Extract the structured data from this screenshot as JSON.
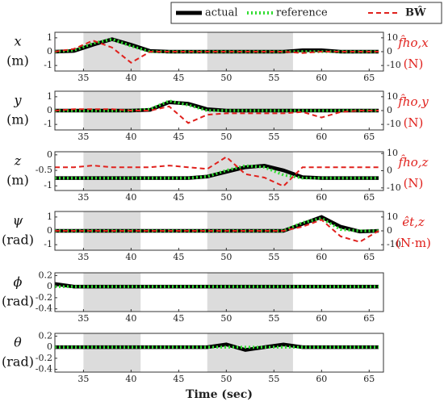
{
  "chart_data": [
    {
      "type": "line",
      "y_label": "x",
      "y_unit": "(m)",
      "y2_label": "f̂ho,x",
      "y2_unit": "(N)",
      "x": [
        32,
        34,
        36,
        38,
        40,
        42,
        44,
        46,
        48,
        50,
        52,
        54,
        56,
        58,
        60,
        62,
        64,
        66
      ],
      "xlim": [
        32,
        66.5
      ],
      "xticks": [
        35,
        40,
        45,
        50,
        55,
        60,
        65
      ],
      "ylim": [
        -1.4,
        1.4
      ],
      "yticks": [
        -1,
        0,
        1
      ],
      "y2lim": [
        -14,
        14
      ],
      "y2ticks": [
        -10,
        0,
        10
      ],
      "shaded": [
        [
          35,
          41
        ],
        [
          48,
          57
        ]
      ],
      "series": [
        {
          "name": "actual",
          "color": "#000000",
          "values": [
            0,
            0.05,
            0.5,
            0.9,
            0.5,
            0.05,
            0,
            0,
            0,
            0,
            0,
            0,
            0,
            0.1,
            0.1,
            0,
            0,
            0
          ]
        },
        {
          "name": "reference",
          "color": "#33dd33",
          "values": [
            0,
            0.1,
            0.6,
            0.9,
            0.4,
            0,
            0,
            0,
            0,
            0,
            0,
            0,
            0,
            0,
            0,
            0,
            0,
            0
          ]
        },
        {
          "name": "BŴ",
          "color": "#e0211d",
          "axis": "y2",
          "values": [
            0,
            2,
            8,
            3,
            -8,
            0,
            0,
            0,
            0,
            0,
            0,
            0,
            0,
            -1,
            0,
            0,
            0,
            0
          ]
        }
      ]
    },
    {
      "type": "line",
      "y_label": "y",
      "y_unit": "(m)",
      "y2_label": "f̂ho,y",
      "y2_unit": "(N)",
      "x": [
        32,
        34,
        36,
        38,
        40,
        42,
        44,
        46,
        48,
        50,
        52,
        54,
        56,
        58,
        60,
        62,
        64,
        66
      ],
      "xlim": [
        32,
        66.5
      ],
      "xticks": [
        35,
        40,
        45,
        50,
        55,
        60,
        65
      ],
      "ylim": [
        -1.4,
        1.4
      ],
      "yticks": [
        -1,
        0,
        1
      ],
      "y2lim": [
        -14,
        14
      ],
      "y2ticks": [
        -10,
        0,
        10
      ],
      "shaded": [
        [
          35,
          41
        ],
        [
          48,
          57
        ]
      ],
      "series": [
        {
          "name": "actual",
          "color": "#000000",
          "values": [
            0,
            0,
            0,
            0,
            0,
            0.05,
            0.6,
            0.5,
            0.1,
            0,
            0,
            0,
            0,
            0,
            0,
            0,
            0,
            0
          ]
        },
        {
          "name": "reference",
          "color": "#33dd33",
          "values": [
            0,
            0,
            0,
            0,
            0,
            0.1,
            0.7,
            0.4,
            0,
            0,
            0,
            0,
            0,
            0,
            0,
            0,
            0,
            0
          ]
        },
        {
          "name": "BŴ",
          "color": "#e0211d",
          "axis": "y2",
          "values": [
            0,
            1,
            1,
            1,
            0,
            0,
            3,
            -9,
            -3,
            -2,
            -2,
            -2,
            -2,
            -1,
            -5,
            -1,
            0,
            0
          ]
        }
      ]
    },
    {
      "type": "line",
      "y_label": "z",
      "y_unit": "(m)",
      "y2_label": "f̂ho,z",
      "y2_unit": "(N)",
      "x": [
        32,
        34,
        36,
        38,
        40,
        42,
        44,
        46,
        48,
        50,
        52,
        54,
        56,
        58,
        60,
        62,
        64,
        66
      ],
      "xlim": [
        32,
        66.5
      ],
      "xticks": [
        35,
        40,
        45,
        50,
        55,
        60,
        65
      ],
      "ylim": [
        -1.15,
        0.1
      ],
      "yticks": [
        -1,
        -0.5,
        0
      ],
      "y2lim": [
        -11.5,
        11
      ],
      "y2ticks": [
        -10,
        0,
        10
      ],
      "shaded": [
        [
          35,
          41
        ],
        [
          48,
          57
        ]
      ],
      "series": [
        {
          "name": "actual",
          "color": "#000000",
          "values": [
            -0.75,
            -0.75,
            -0.75,
            -0.75,
            -0.75,
            -0.75,
            -0.75,
            -0.75,
            -0.7,
            -0.55,
            -0.4,
            -0.35,
            -0.5,
            -0.72,
            -0.75,
            -0.75,
            -0.75,
            -0.75
          ]
        },
        {
          "name": "reference",
          "color": "#33dd33",
          "values": [
            -0.75,
            -0.75,
            -0.75,
            -0.75,
            -0.75,
            -0.75,
            -0.75,
            -0.75,
            -0.7,
            -0.5,
            -0.35,
            -0.4,
            -0.65,
            -0.75,
            -0.75,
            -0.75,
            -0.75,
            -0.75
          ]
        },
        {
          "name": "BŴ",
          "color": "#e0211d",
          "axis": "y2",
          "values": [
            2,
            2,
            3,
            2,
            2,
            2,
            3,
            2,
            1,
            8,
            -2,
            -4,
            -9,
            2,
            2,
            2,
            2,
            2
          ]
        }
      ]
    },
    {
      "type": "line",
      "y_label": "ψ",
      "y_unit": "(rad)",
      "y2_label": "êt,z",
      "y2_unit": "(N·m)",
      "x": [
        32,
        34,
        36,
        38,
        40,
        42,
        44,
        46,
        48,
        50,
        52,
        54,
        56,
        58,
        60,
        62,
        64,
        66
      ],
      "xlim": [
        32,
        66.5
      ],
      "xticks": [
        35,
        40,
        45,
        50,
        55,
        60,
        65
      ],
      "ylim": [
        -1.4,
        1.4
      ],
      "yticks": [
        -1,
        0,
        1
      ],
      "y2lim": [
        -14,
        14
      ],
      "y2ticks": [
        -10,
        0,
        10
      ],
      "shaded": [
        [
          35,
          41
        ],
        [
          48,
          57
        ]
      ],
      "series": [
        {
          "name": "actual",
          "color": "#000000",
          "values": [
            0,
            0,
            0,
            0,
            0,
            0,
            0,
            0,
            0,
            0,
            0,
            0,
            0,
            0.5,
            1,
            0.3,
            -0.05,
            0
          ]
        },
        {
          "name": "reference",
          "color": "#33dd33",
          "values": [
            0,
            0,
            0,
            0,
            0,
            0,
            0,
            0,
            0,
            0,
            0,
            0,
            0,
            0.6,
            0.9,
            0.1,
            0,
            0
          ]
        },
        {
          "name": "BŴ",
          "color": "#e0211d",
          "axis": "y2",
          "values": [
            0,
            0,
            0,
            0,
            0,
            0,
            0,
            0,
            0,
            0,
            0,
            0,
            0,
            3,
            8,
            -4,
            -8,
            0
          ]
        }
      ]
    },
    {
      "type": "line",
      "y_label": "ϕ",
      "y_unit": "(rad)",
      "x": [
        32,
        34,
        36,
        38,
        40,
        42,
        44,
        46,
        48,
        50,
        52,
        54,
        56,
        58,
        60,
        62,
        64,
        66
      ],
      "xlim": [
        32,
        66.5
      ],
      "xticks": [
        35,
        40,
        45,
        50,
        55,
        60,
        65
      ],
      "ylim": [
        -0.45,
        0.25
      ],
      "yticks": [
        -0.4,
        -0.2,
        0,
        0.2
      ],
      "shaded": [
        [
          35,
          41
        ],
        [
          48,
          57
        ]
      ],
      "series": [
        {
          "name": "actual",
          "color": "#000000",
          "values": [
            0.05,
            0,
            0,
            0,
            0,
            0,
            0,
            0,
            0,
            0,
            0,
            0,
            0,
            0,
            0,
            0,
            0,
            0
          ]
        },
        {
          "name": "reference",
          "color": "#33dd33",
          "values": [
            0,
            0,
            0,
            0,
            0,
            0,
            0,
            0,
            0,
            0,
            0,
            0,
            0,
            0,
            0,
            0,
            0,
            0
          ]
        }
      ]
    },
    {
      "type": "line",
      "y_label": "θ",
      "y_unit": "(rad)",
      "x_label": "Time (sec)",
      "x": [
        32,
        34,
        36,
        38,
        40,
        42,
        44,
        46,
        48,
        50,
        52,
        54,
        56,
        58,
        60,
        62,
        64,
        66
      ],
      "xlim": [
        32,
        66.5
      ],
      "xticks": [
        35,
        40,
        45,
        50,
        55,
        60,
        65
      ],
      "ylim": [
        -0.45,
        0.25
      ],
      "yticks": [
        -0.4,
        -0.2,
        0,
        0.2
      ],
      "shaded": [
        [
          35,
          41
        ],
        [
          48,
          57
        ]
      ],
      "series": [
        {
          "name": "actual",
          "color": "#000000",
          "values": [
            0,
            0,
            0,
            0,
            0,
            0,
            0,
            0,
            0,
            0.05,
            -0.05,
            0,
            0.05,
            0,
            0,
            0,
            0,
            0
          ]
        },
        {
          "name": "reference",
          "color": "#33dd33",
          "values": [
            0,
            0,
            0,
            0,
            0,
            0,
            0,
            0,
            0,
            0,
            0,
            0,
            0,
            0,
            0,
            0,
            0,
            0
          ]
        }
      ]
    }
  ]
}
